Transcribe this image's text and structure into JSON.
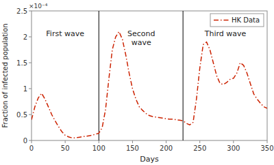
{
  "chart_data": {
    "type": "line",
    "xlabel": "Days",
    "ylabel": "Fraction of infected population",
    "xlim": [
      0,
      350
    ],
    "ylim": [
      0,
      0.00025
    ],
    "xticks": [
      0,
      50,
      100,
      150,
      200,
      250,
      300,
      350
    ],
    "yticks": [
      0,
      {
        "value": 5e-05,
        "label": "0.5"
      },
      {
        "value": 0.0001,
        "label": "1"
      },
      {
        "value": 0.00015,
        "label": "1.5"
      },
      {
        "value": 0.0002,
        "label": "2"
      },
      {
        "value": 0.00025,
        "label": "2.5"
      }
    ],
    "grid": false,
    "legend": "upper right",
    "vlines": [
      100,
      225
    ],
    "annotations": [
      {
        "text": "×10⁻⁴"
      },
      {
        "text": "First wave",
        "x": 50,
        "y": 0.000215
      },
      {
        "text": "Second\nwave",
        "x": 163,
        "y": 0.000215
      },
      {
        "text": "Third wave",
        "x": 288,
        "y": 0.000215
      }
    ],
    "x": [
      0,
      5,
      10,
      15,
      20,
      25,
      30,
      35,
      40,
      45,
      50,
      55,
      60,
      65,
      70,
      75,
      80,
      85,
      90,
      95,
      100,
      105,
      110,
      115,
      120,
      125,
      130,
      135,
      140,
      145,
      150,
      155,
      160,
      165,
      170,
      175,
      180,
      185,
      190,
      195,
      200,
      205,
      210,
      215,
      220,
      225,
      230,
      235,
      240,
      245,
      250,
      255,
      260,
      265,
      270,
      275,
      280,
      285,
      290,
      295,
      300,
      305,
      310,
      315,
      320,
      325,
      330,
      335,
      340,
      345,
      350
    ],
    "series": [
      {
        "name": "HK Data",
        "color": "#cc2200",
        "line_style": "dashdot",
        "values": [
          4e-05,
          6.5e-05,
          8.2e-05,
          9.1e-05,
          8e-05,
          6.5e-05,
          5e-05,
          3.8e-05,
          2.7e-05,
          1.7e-05,
          1e-05,
          7e-06,
          5e-06,
          5e-06,
          6e-06,
          7e-06,
          8e-06,
          9e-06,
          1e-05,
          1.2e-05,
          1.4e-05,
          2.5e-05,
          6e-05,
          0.00012,
          0.000175,
          0.0002,
          0.00021,
          0.000195,
          0.000165,
          0.00013,
          0.0001,
          8e-05,
          6.5e-05,
          5.8e-05,
          5.2e-05,
          4.8e-05,
          4.6e-05,
          4.5e-05,
          4.4e-05,
          4.3e-05,
          4.2e-05,
          4.1e-05,
          4.1e-05,
          4e-05,
          3.9e-05,
          3.8e-05,
          3.3e-05,
          3e-05,
          3.5e-05,
          8e-05,
          0.00014,
          0.000185,
          0.00019,
          0.000175,
          0.00015,
          0.000125,
          0.00011,
          0.000108,
          0.000112,
          0.000118,
          0.00012,
          0.00013,
          0.00015,
          0.000145,
          0.00013,
          0.00011,
          9e-05,
          8e-05,
          7.2e-05,
          6.5e-05,
          6.2e-05
        ]
      }
    ]
  }
}
